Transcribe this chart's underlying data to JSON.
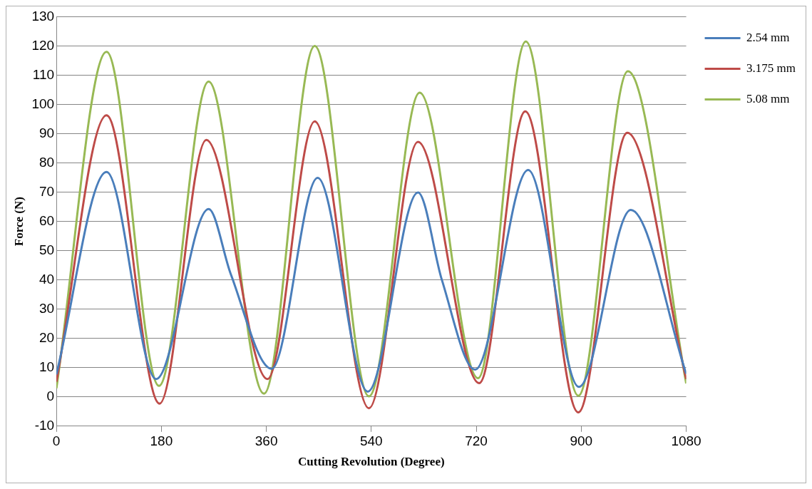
{
  "chart_data": {
    "type": "line",
    "xlabel": "Cutting Revolution (Degree)",
    "ylabel": "Force (N)",
    "xlim": [
      0,
      1080
    ],
    "xticks": [
      0,
      180,
      360,
      540,
      720,
      900,
      1080
    ],
    "ylim": [
      -10,
      130
    ],
    "yticks": [
      -10,
      0,
      10,
      20,
      30,
      40,
      50,
      60,
      70,
      80,
      90,
      100,
      110,
      120,
      130
    ],
    "grid": "y",
    "legend": "top right",
    "marker": "none",
    "line_style": "solid",
    "series": [
      {
        "name": "2.54 mm",
        "color": "#4a7ebb",
        "x": [
          0,
          86,
          171,
          261,
          299,
          369,
          448,
          534,
          620,
          661,
          718,
          809,
          896,
          985,
          1080
        ],
        "values": [
          7.7,
          76.9,
          6.1,
          64.2,
          42,
          9.6,
          74.9,
          1.8,
          69.9,
          40,
          9.3,
          77.6,
          3.4,
          63.9,
          7.9
        ]
      },
      {
        "name": "3.175 mm",
        "color": "#be4b48",
        "x": [
          0,
          86,
          177,
          257,
          362,
          443,
          536,
          620,
          725,
          804,
          895,
          979,
          1080
        ],
        "values": [
          5.2,
          96.3,
          -2.3,
          87.9,
          6.1,
          94.2,
          -3.9,
          87.2,
          4.7,
          97.6,
          -5.3,
          90.3,
          6.1
        ]
      },
      {
        "name": "5.08 mm",
        "color": "#98b954",
        "x": [
          0,
          86,
          176,
          261,
          356,
          443,
          536,
          623,
          723,
          805,
          895,
          980,
          1080
        ],
        "values": [
          2.9,
          118,
          3.8,
          107.8,
          1.1,
          120,
          0.2,
          104,
          6.4,
          121.5,
          0.4,
          111.3,
          4.6
        ]
      }
    ]
  }
}
